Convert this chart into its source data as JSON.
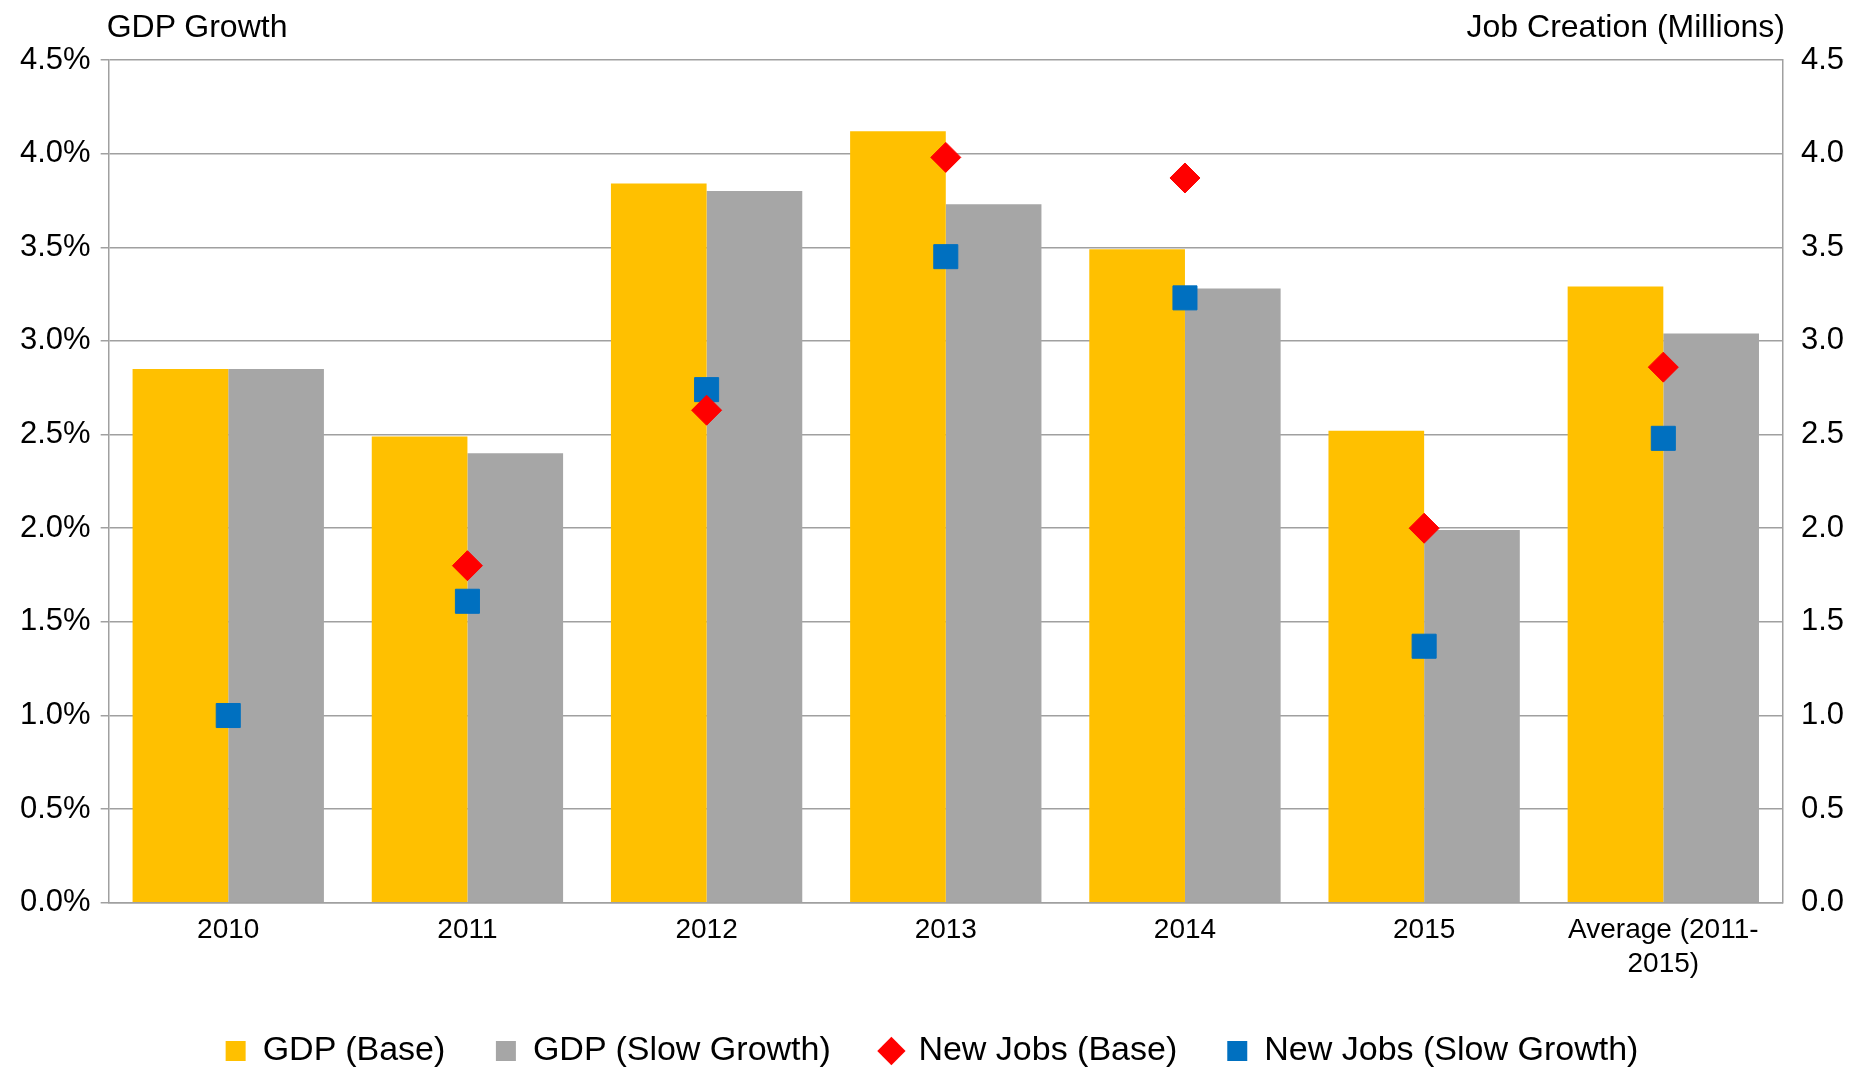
{
  "chart_data": {
    "type": "bar",
    "ylabel": "GDP Growth",
    "y2label": "Job Creation (Millions)",
    "categories": [
      "2010",
      "2011",
      "2012",
      "2013",
      "2014",
      "2015",
      "Average (2011-2015)"
    ],
    "series": [
      {
        "name": "GDP (Base)",
        "color": "#ffc000",
        "values": [
          2.85,
          2.49,
          3.84,
          4.12,
          3.49,
          2.52,
          3.29
        ]
      },
      {
        "name": "GDP (Slow Growth)",
        "color": "#a6a6a6",
        "values": [
          2.85,
          2.4,
          3.8,
          3.73,
          3.28,
          1.99,
          3.04
        ]
      },
      {
        "name": "New Jobs (Base)",
        "type": "scatter",
        "axis": "y2",
        "marker": "diamond",
        "color": "#ff0000",
        "values": [
          null,
          1.8,
          2.63,
          3.98,
          3.87,
          2.0,
          2.86
        ]
      },
      {
        "name": "New Jobs (Slow Growth)",
        "type": "scatter",
        "axis": "y2",
        "marker": "square",
        "color": "#0070c0",
        "values": [
          1.0,
          1.61,
          2.74,
          3.45,
          3.23,
          1.37,
          2.48
        ]
      }
    ],
    "ylim": [
      0,
      4.5
    ],
    "yticks": [
      {
        "value": 0,
        "label": "0.0%"
      },
      {
        "value": 0.5,
        "label": "0.5%"
      },
      {
        "value": 1,
        "label": "1.0%"
      },
      {
        "value": 1.5,
        "label": "1.5%"
      },
      {
        "value": 2,
        "label": "2.0%"
      },
      {
        "value": 2.5,
        "label": "2.5%"
      },
      {
        "value": 3,
        "label": "3.0%"
      },
      {
        "value": 3.5,
        "label": "3.5%"
      },
      {
        "value": 4,
        "label": "4.0%"
      },
      {
        "value": 4.5,
        "label": "4.5%"
      }
    ],
    "y2lim": [
      0,
      4.5
    ],
    "y2ticks": [
      {
        "value": 0,
        "label": "0.0"
      },
      {
        "value": 0.5,
        "label": "0.5"
      },
      {
        "value": 1,
        "label": "1.0"
      },
      {
        "value": 1.5,
        "label": "1.5"
      },
      {
        "value": 2,
        "label": "2.0"
      },
      {
        "value": 2.5,
        "label": "2.5"
      },
      {
        "value": 3,
        "label": "3.0"
      },
      {
        "value": 3.5,
        "label": "3.5"
      },
      {
        "value": 4,
        "label": "4.0"
      },
      {
        "value": 4.5,
        "label": "4.5"
      }
    ],
    "grid": "y",
    "legend": "bottom"
  }
}
